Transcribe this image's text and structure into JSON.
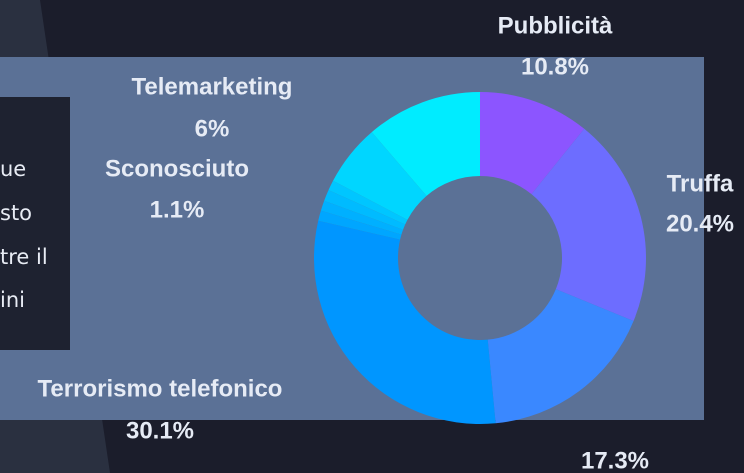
{
  "side_text": [
    "ue",
    "sto",
    "tre il",
    "ini"
  ],
  "chart_data": {
    "type": "donut",
    "categories": [
      "Pubblicità",
      "Truffa",
      null,
      "Terrorismo telefonico",
      null,
      null,
      "Sconosciuto",
      null,
      "Telemarketing",
      null
    ],
    "values": [
      10.8,
      20.4,
      17.3,
      30.1,
      1,
      1,
      1.1,
      1,
      6,
      11.3
    ],
    "value_labels": [
      "10.8%",
      "20.4%",
      "17.3%",
      "30.1%",
      null,
      null,
      "1.1%",
      null,
      "6%",
      null
    ],
    "colors": [
      "#8c55ff",
      "#6d6dff",
      "#3a88ff",
      "#0096ff",
      "#00a6ff",
      "#00b0ff",
      "#00bbff",
      "#00c6ff",
      "#00d6ff",
      "#00ecff"
    ]
  }
}
